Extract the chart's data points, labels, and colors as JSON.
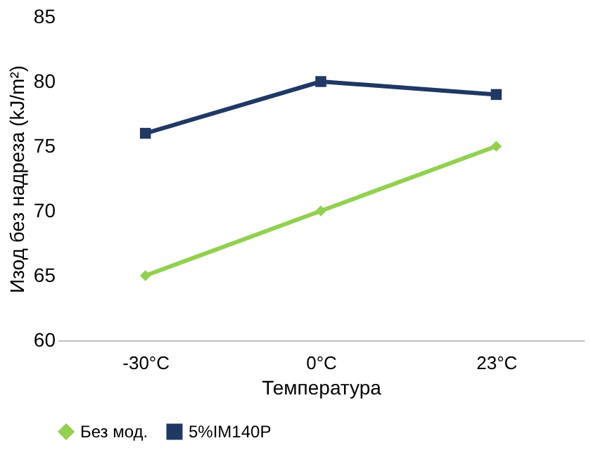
{
  "chart_data": {
    "type": "line",
    "xlabel": "Температура",
    "ylabel": "Изод без надреза (kJ/m²)",
    "categories": [
      "-30°C",
      "0°C",
      "23°C"
    ],
    "series": [
      {
        "name": "Без мод.",
        "color": "#92d050",
        "marker": "diamond",
        "values": [
          65,
          70,
          75
        ]
      },
      {
        "name": "5%IM140P",
        "color": "#1f3864",
        "marker": "square",
        "values": [
          76,
          80,
          79
        ]
      }
    ],
    "ylim": [
      60,
      85
    ],
    "yticks": [
      60,
      65,
      70,
      75,
      80,
      85
    ],
    "grid": false,
    "legend": "bottom",
    "line_style": "solid"
  }
}
